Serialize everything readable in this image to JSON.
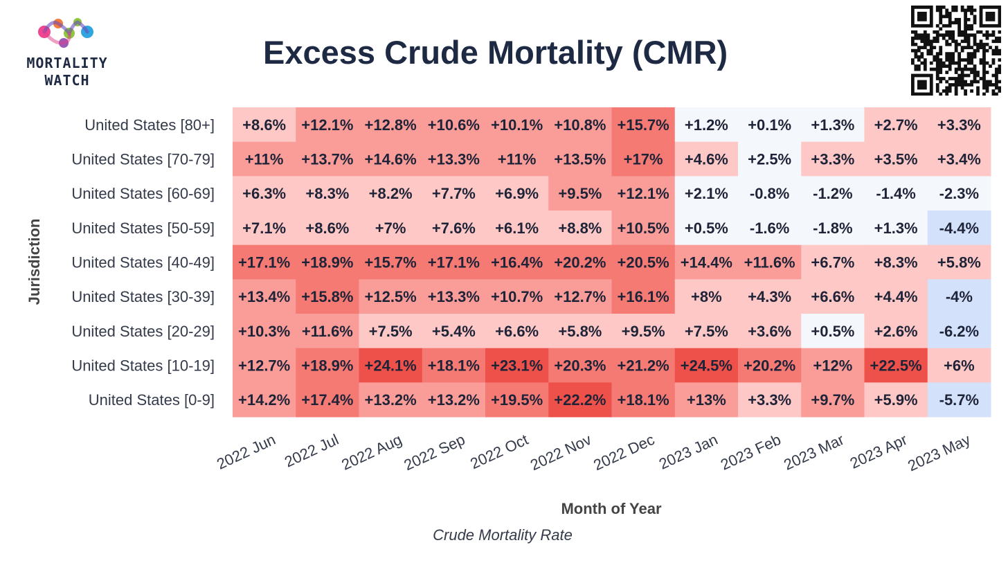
{
  "logo": {
    "line1": "MORTALITY",
    "line2": "WATCH"
  },
  "title": "Excess Crude Mortality (CMR)",
  "subtitle": "Crude Mortality Rate",
  "chart_data": {
    "type": "heatmap",
    "title": "Excess Crude Mortality (CMR)",
    "xlabel": "Month of Year",
    "ylabel": "Jurisdiction",
    "columns": [
      "2022 Jun",
      "2022 Jul",
      "2022 Aug",
      "2022 Sep",
      "2022 Oct",
      "2022 Nov",
      "2022 Dec",
      "2023 Jan",
      "2023 Feb",
      "2023 Mar",
      "2023 Apr",
      "2023 May"
    ],
    "rows": [
      "United States [80+]",
      "United States [70-79]",
      "United States [60-69]",
      "United States [50-59]",
      "United States [40-49]",
      "United States [30-39]",
      "United States [20-29]",
      "United States [10-19]",
      "United States [0-9]"
    ],
    "values": [
      [
        8.6,
        12.1,
        12.8,
        10.6,
        10.1,
        10.8,
        15.7,
        1.2,
        0.1,
        1.3,
        2.7,
        3.3
      ],
      [
        11,
        13.7,
        14.6,
        13.3,
        11,
        13.5,
        17,
        4.6,
        2.5,
        3.3,
        3.5,
        3.4
      ],
      [
        6.3,
        8.3,
        8.2,
        7.7,
        6.9,
        9.5,
        12.1,
        2.1,
        -0.8,
        -1.2,
        -1.4,
        -2.3
      ],
      [
        7.1,
        8.6,
        7,
        7.6,
        6.1,
        8.8,
        10.5,
        0.5,
        -1.6,
        -1.8,
        1.3,
        -4.4
      ],
      [
        17.1,
        18.9,
        15.7,
        17.1,
        16.4,
        20.2,
        20.5,
        14.4,
        11.6,
        6.7,
        8.3,
        5.8
      ],
      [
        13.4,
        15.8,
        12.5,
        13.3,
        10.7,
        12.7,
        16.1,
        8,
        4.3,
        6.6,
        4.4,
        -4
      ],
      [
        10.3,
        11.6,
        7.5,
        5.4,
        6.6,
        5.8,
        9.5,
        7.5,
        3.6,
        0.5,
        2.6,
        -6.2
      ],
      [
        12.7,
        18.9,
        24.1,
        18.1,
        23.1,
        20.3,
        21.2,
        24.5,
        20.2,
        12,
        22.5,
        6
      ],
      [
        14.2,
        17.4,
        13.2,
        13.2,
        19.5,
        22.2,
        18.1,
        13,
        3.3,
        9.7,
        5.9,
        -5.7
      ]
    ],
    "labels": [
      [
        "+8.6%",
        "+12.1%",
        "+12.8%",
        "+10.6%",
        "+10.1%",
        "+10.8%",
        "+15.7%",
        "+1.2%",
        "+0.1%",
        "+1.3%",
        "+2.7%",
        "+3.3%"
      ],
      [
        "+11%",
        "+13.7%",
        "+14.6%",
        "+13.3%",
        "+11%",
        "+13.5%",
        "+17%",
        "+4.6%",
        "+2.5%",
        "+3.3%",
        "+3.5%",
        "+3.4%"
      ],
      [
        "+6.3%",
        "+8.3%",
        "+8.2%",
        "+7.7%",
        "+6.9%",
        "+9.5%",
        "+12.1%",
        "+2.1%",
        "-0.8%",
        "-1.2%",
        "-1.4%",
        "-2.3%"
      ],
      [
        "+7.1%",
        "+8.6%",
        "+7%",
        "+7.6%",
        "+6.1%",
        "+8.8%",
        "+10.5%",
        "+0.5%",
        "-1.6%",
        "-1.8%",
        "+1.3%",
        "-4.4%"
      ],
      [
        "+17.1%",
        "+18.9%",
        "+15.7%",
        "+17.1%",
        "+16.4%",
        "+20.2%",
        "+20.5%",
        "+14.4%",
        "+11.6%",
        "+6.7%",
        "+8.3%",
        "+5.8%"
      ],
      [
        "+13.4%",
        "+15.8%",
        "+12.5%",
        "+13.3%",
        "+10.7%",
        "+12.7%",
        "+16.1%",
        "+8%",
        "+4.3%",
        "+6.6%",
        "+4.4%",
        "-4%"
      ],
      [
        "+10.3%",
        "+11.6%",
        "+7.5%",
        "+5.4%",
        "+6.6%",
        "+5.8%",
        "+9.5%",
        "+7.5%",
        "+3.6%",
        "+0.5%",
        "+2.6%",
        "-6.2%"
      ],
      [
        "+12.7%",
        "+18.9%",
        "+24.1%",
        "+18.1%",
        "+23.1%",
        "+20.3%",
        "+21.2%",
        "+24.5%",
        "+20.2%",
        "+12%",
        "+22.5%",
        "+6%"
      ],
      [
        "+14.2%",
        "+17.4%",
        "+13.2%",
        "+13.2%",
        "+19.5%",
        "+22.2%",
        "+18.1%",
        "+13%",
        "+3.3%",
        "+9.7%",
        "+5.9%",
        "-5.7%"
      ]
    ],
    "color_bins": [
      {
        "min": -100,
        "max": -3,
        "color": "#d3e2fa"
      },
      {
        "min": -3,
        "max": 2.5,
        "color": "#f4f8fd"
      },
      {
        "min": 2.5,
        "max": 10,
        "color": "#fdc8c5"
      },
      {
        "min": 10,
        "max": 15,
        "color": "#fa9d98"
      },
      {
        "min": 15,
        "max": 22,
        "color": "#f47a73"
      },
      {
        "min": 22,
        "max": 100,
        "color": "#ee5149"
      }
    ],
    "cell_colors": [
      [
        "#fdc8c5",
        "#fa9d98",
        "#fa9d98",
        "#fa9d98",
        "#fa9d98",
        "#fa9d98",
        "#f47a73",
        "#f4f8fd",
        "#f4f8fd",
        "#f4f8fd",
        "#fdc8c5",
        "#fdc8c5"
      ],
      [
        "#fa9d98",
        "#fa9d98",
        "#fa9d98",
        "#fa9d98",
        "#fa9d98",
        "#fa9d98",
        "#f47a73",
        "#fdc8c5",
        "#f4f8fd",
        "#fdc8c5",
        "#fdc8c5",
        "#fdc8c5"
      ],
      [
        "#fdc8c5",
        "#fdc8c5",
        "#fdc8c5",
        "#fdc8c5",
        "#fdc8c5",
        "#fa9d98",
        "#fa9d98",
        "#f4f8fd",
        "#f4f8fd",
        "#f4f8fd",
        "#f4f8fd",
        "#f4f8fd"
      ],
      [
        "#fdc8c5",
        "#fdc8c5",
        "#fdc8c5",
        "#fdc8c5",
        "#fdc8c5",
        "#fdc8c5",
        "#fa9d98",
        "#f4f8fd",
        "#f4f8fd",
        "#f4f8fd",
        "#f4f8fd",
        "#d3e2fa"
      ],
      [
        "#f47a73",
        "#f47a73",
        "#f47a73",
        "#f47a73",
        "#f47a73",
        "#f47a73",
        "#f47a73",
        "#fa9d98",
        "#fa9d98",
        "#fdc8c5",
        "#fdc8c5",
        "#fdc8c5"
      ],
      [
        "#fa9d98",
        "#f47a73",
        "#fa9d98",
        "#fa9d98",
        "#fa9d98",
        "#fa9d98",
        "#f47a73",
        "#fdc8c5",
        "#fdc8c5",
        "#fdc8c5",
        "#fdc8c5",
        "#d3e2fa"
      ],
      [
        "#fa9d98",
        "#fa9d98",
        "#fdc8c5",
        "#fdc8c5",
        "#fdc8c5",
        "#fdc8c5",
        "#fdc8c5",
        "#fdc8c5",
        "#fdc8c5",
        "#f4f8fd",
        "#fdc8c5",
        "#d3e2fa"
      ],
      [
        "#fa9d98",
        "#f47a73",
        "#ee5149",
        "#f47a73",
        "#ee5149",
        "#f47a73",
        "#f47a73",
        "#ee5149",
        "#f47a73",
        "#fa9d98",
        "#ee5149",
        "#fdc8c5"
      ],
      [
        "#fa9d98",
        "#f47a73",
        "#fa9d98",
        "#fa9d98",
        "#f47a73",
        "#ee5149",
        "#f47a73",
        "#fa9d98",
        "#fdc8c5",
        "#fa9d98",
        "#fdc8c5",
        "#d3e2fa"
      ]
    ]
  }
}
